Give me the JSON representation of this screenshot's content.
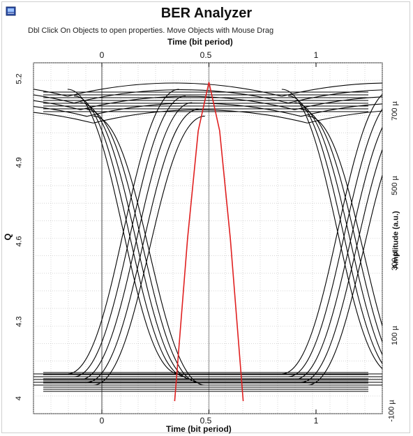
{
  "window": {
    "title": "BER Analyzer",
    "hint": "Dbl Click On Objects to open properties.  Move Objects with Mouse Drag",
    "icon": "analyzer-icon"
  },
  "chart_data": {
    "type": "line",
    "title": "BER Analyzer",
    "x_axis_top": {
      "label": "Time (bit period)",
      "ticks": [
        "0",
        "0.5",
        "1"
      ]
    },
    "x_axis_bottom": {
      "label": "Time (bit period)",
      "ticks": [
        "0",
        "0.5",
        "1"
      ]
    },
    "y_axis_left": {
      "label": "Q",
      "ticks": [
        "4",
        "4.3",
        "4.6",
        "4.9",
        "5.2"
      ],
      "range": [
        4.0,
        5.2
      ]
    },
    "y_axis_right": {
      "label": "Amplitude (a.u.)",
      "ticks": [
        "-100 µ",
        "100 µ",
        "300 µ",
        "500 µ",
        "700 µ"
      ]
    },
    "xlim": [
      -0.27,
      1.27
    ],
    "grid": true,
    "trace_color": "#000000",
    "q_curve_color": "#e02020",
    "q_curve": {
      "x": [
        0.34,
        0.4,
        0.45,
        0.5,
        0.55,
        0.6,
        0.66
      ],
      "y": [
        4.0,
        4.6,
        5.0,
        5.18,
        5.0,
        4.6,
        4.0
      ]
    },
    "eye_levels": {
      "high": "approx 650–790 µ",
      "low": "approx 0–30 µ"
    }
  }
}
